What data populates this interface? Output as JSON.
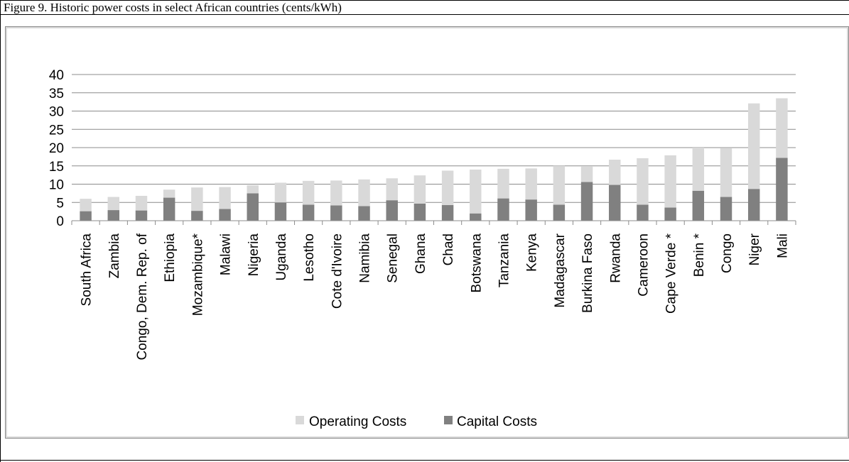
{
  "figure": {
    "caption": "Figure 9. Historic power costs in select African countries (cents/kWh)"
  },
  "colors": {
    "operating": "#d9d9d9",
    "capital": "#808080",
    "gridline": "#8c8c8c"
  },
  "chart_data": {
    "type": "bar",
    "stacked": true,
    "categories": [
      "South Africa",
      "Zambia",
      "Congo, Dem. Rep. of",
      "Ethiopia",
      "Mozambique*",
      "Malawi",
      "Nigeria",
      "Uganda",
      "Lesotho",
      "Cote d'Ivoire",
      "Namibia",
      "Senegal",
      "Ghana",
      "Chad",
      "Botswana",
      "Tanzania",
      "Kenya",
      "Madagascar",
      "Burkina Faso",
      "Rwanda",
      "Cameroon",
      "Cape Verde *",
      "Benin *",
      "Congo",
      "Niger",
      "Mali"
    ],
    "series": [
      {
        "name": "Capital Costs",
        "values": [
          2.6,
          2.9,
          2.8,
          6.3,
          2.7,
          3.2,
          7.5,
          5.0,
          4.4,
          4.2,
          4.0,
          5.6,
          4.7,
          4.3,
          2.0,
          6.1,
          5.8,
          4.4,
          10.6,
          9.8,
          4.4,
          3.6,
          8.2,
          6.5,
          8.7,
          17.2
        ]
      },
      {
        "name": "Operating Costs",
        "values": [
          3.4,
          3.6,
          4.0,
          2.2,
          6.4,
          6.0,
          2.2,
          5.4,
          6.5,
          6.8,
          7.3,
          6.0,
          7.7,
          9.4,
          12.0,
          8.1,
          8.5,
          10.6,
          4.2,
          6.9,
          12.7,
          14.3,
          11.8,
          13.3,
          23.4,
          16.3
        ]
      }
    ],
    "legend": [
      "Operating Costs",
      "Capital Costs"
    ],
    "legend_position": "bottom",
    "ylim": [
      0,
      40
    ],
    "yticks": [
      "0",
      "5",
      "10",
      "15",
      "20",
      "25",
      "30",
      "35",
      "40"
    ],
    "grid": true
  }
}
